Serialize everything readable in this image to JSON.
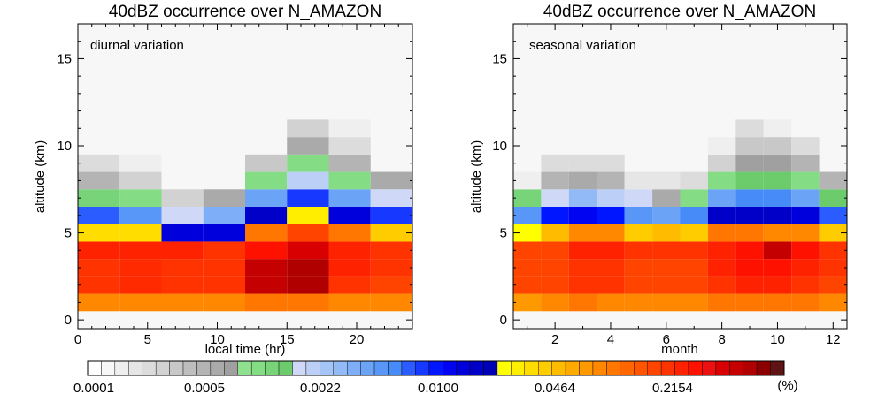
{
  "colorbar": {
    "tick_labels": [
      "0.0001",
      "0.0005",
      "0.0022",
      "0.0100",
      "0.0464",
      "0.2154"
    ],
    "unit": "(%)",
    "colors": [
      "#ffffff",
      "#f7f7f7",
      "#efefef",
      "#e6e6e6",
      "#dcdcdc",
      "#d2d2d2",
      "#c8c8c8",
      "#bebebe",
      "#b4b4b4",
      "#aaaaaa",
      "#a0a0a0",
      "#8fe08f",
      "#84dc84",
      "#78d478",
      "#6ccc6c",
      "#cfd9f7",
      "#bcd0f7",
      "#a6c5f7",
      "#92baf7",
      "#7eaef7",
      "#6ba3f7",
      "#5897f7",
      "#468bf7",
      "#2a5cff",
      "#1638ff",
      "#0016ff",
      "#0004f0",
      "#0000dc",
      "#0000c8",
      "#0000b4",
      "#ffff00",
      "#ffee00",
      "#ffdd00",
      "#ffcc00",
      "#ffbb00",
      "#ffaa00",
      "#ff9900",
      "#ff8800",
      "#ff7700",
      "#ff6600",
      "#ff5500",
      "#ff4400",
      "#ff3300",
      "#ff2200",
      "#ff1100",
      "#ec1010",
      "#d80000",
      "#c40000",
      "#b00000",
      "#8c0000",
      "#5e1414"
    ]
  },
  "chart_data": [
    {
      "type": "heatmap",
      "title": "40dBZ occurrence over N_AMAZON",
      "annotation": "diurnal variation",
      "xlabel": "local time (hr)",
      "ylabel": "altitude (km)",
      "xlim": [
        0,
        24
      ],
      "ylim": [
        -0.5,
        17
      ],
      "xticks": [
        0,
        5,
        10,
        15,
        20
      ],
      "yticks": [
        0,
        5,
        10,
        15
      ],
      "x_bin_edges": [
        0,
        3,
        6,
        9,
        12,
        15,
        18,
        21,
        24
      ],
      "y_bin_edges": [
        0.5,
        1.5,
        2.5,
        3.5,
        4.5,
        5.5,
        6.5,
        7.5,
        8.5,
        9.5,
        10.5,
        11.5,
        17
      ],
      "background": "#f7f7f7",
      "grid": false,
      "cells": [
        [
          "#ff8800",
          "#ff8800",
          "#ff8800",
          "#ff8800",
          "#ff7700",
          "#ff7700",
          "#ff8800",
          "#ff8800"
        ],
        [
          "#ff3300",
          "#ff2a00",
          "#ff3300",
          "#ff3300",
          "#c40000",
          "#b00000",
          "#ff3300",
          "#ff4400"
        ],
        [
          "#ff3300",
          "#ff2a00",
          "#ff3300",
          "#ff3300",
          "#c40000",
          "#b00000",
          "#ff2200",
          "#ff3300"
        ],
        [
          "#ff2200",
          "#ff2200",
          "#ff2200",
          "#ff3300",
          "#ff1100",
          "#d80000",
          "#ff2200",
          "#ff3300"
        ],
        [
          "#ffdd00",
          "#ffdd00",
          "#0000dc",
          "#0000dc",
          "#ff7700",
          "#ff4400",
          "#ff7700",
          "#ffcc00"
        ],
        [
          "#2a5cff",
          "#5897f7",
          "#cfd9f7",
          "#7eaef7",
          "#0000c8",
          "#ffee00",
          "#0000dc",
          "#1638ff"
        ],
        [
          "#78d478",
          "#84dc84",
          "#d2d2d2",
          "#aaaaaa",
          "#6ba3f7",
          "#1638ff",
          "#6ba3f7",
          "#cfd9f7"
        ],
        [
          "#b4b4b4",
          "#d2d2d2",
          null,
          null,
          "#84dc84",
          "#bcd0f7",
          "#84dc84",
          "#aaaaaa"
        ],
        [
          "#dcdcdc",
          "#efefef",
          null,
          null,
          "#c8c8c8",
          "#84dc84",
          "#b4b4b4",
          null
        ],
        [
          null,
          null,
          null,
          null,
          null,
          "#aaaaaa",
          "#dcdcdc",
          null
        ],
        [
          null,
          null,
          null,
          null,
          null,
          "#d2d2d2",
          "#efefef",
          null
        ],
        [
          null,
          null,
          null,
          null,
          null,
          null,
          null,
          null
        ]
      ]
    },
    {
      "type": "heatmap",
      "title": "40dBZ occurrence over N_AMAZON",
      "annotation": "seasonal variation",
      "xlabel": "month",
      "ylabel": "altitude (km)",
      "xlim": [
        0.5,
        12.5
      ],
      "ylim": [
        -0.5,
        17
      ],
      "xticks": [
        2,
        4,
        6,
        8,
        10,
        12
      ],
      "yticks": [
        0,
        5,
        10,
        15
      ],
      "x_bin_edges": [
        0.5,
        1.5,
        2.5,
        3.5,
        4.5,
        5.5,
        6.5,
        7.5,
        8.5,
        9.5,
        10.5,
        11.5,
        12.5
      ],
      "y_bin_edges": [
        0.5,
        1.5,
        2.5,
        3.5,
        4.5,
        5.5,
        6.5,
        7.5,
        8.5,
        9.5,
        10.5,
        11.5,
        17
      ],
      "background": "#f7f7f7",
      "grid": false,
      "cells": [
        [
          "#ff9900",
          "#ff8800",
          "#ff7700",
          "#ff8800",
          "#ff8800",
          "#ff8800",
          "#ff8800",
          "#ff7700",
          "#ff7700",
          "#ff7700",
          "#ff7700",
          "#ff8800"
        ],
        [
          "#ff4400",
          "#ff4400",
          "#ff3300",
          "#ff3300",
          "#ff4400",
          "#ff4400",
          "#ff4400",
          "#ff3300",
          "#ff2200",
          "#ff2200",
          "#ff3300",
          "#ff4400"
        ],
        [
          "#ff4400",
          "#ff4400",
          "#ff3300",
          "#ff3300",
          "#ff4400",
          "#ff4400",
          "#ff4400",
          "#ff2200",
          "#ff1100",
          "#ff1100",
          "#ff2200",
          "#ff3300"
        ],
        [
          "#ff4400",
          "#ff4400",
          "#ff2200",
          "#ff2200",
          "#ff3300",
          "#ff3300",
          "#ff3300",
          "#ff2200",
          "#ff1100",
          "#c40000",
          "#ff1100",
          "#ff3300"
        ],
        [
          "#ffff00",
          "#ffbb00",
          "#ff8800",
          "#ff8800",
          "#ffcc00",
          "#ffbb00",
          "#ffcc00",
          "#ff7700",
          "#ff7700",
          "#ff8800",
          "#ff8800",
          "#ffcc00"
        ],
        [
          "#5897f7",
          "#0016ff",
          "#0004f0",
          "#0016ff",
          "#5897f7",
          "#6ba3f7",
          "#468bf7",
          "#0000c8",
          "#0000c8",
          "#0000c8",
          "#0000dc",
          "#2a5cff"
        ],
        [
          "#78d478",
          "#cfd9f7",
          "#92baf7",
          "#bcd0f7",
          "#cfd9f7",
          "#aaaaaa",
          "#84dc84",
          "#6ba3f7",
          "#468bf7",
          "#468bf7",
          "#6ba3f7",
          "#6ccc6c"
        ],
        [
          "#efefef",
          "#b4b4b4",
          "#aaaaaa",
          "#b4b4b4",
          "#e6e6e6",
          "#e6e6e6",
          "#dcdcdc",
          "#84dc84",
          "#6ccc6c",
          "#6ccc6c",
          "#84dc84",
          "#b4b4b4"
        ],
        [
          null,
          "#dcdcdc",
          "#dcdcdc",
          "#dcdcdc",
          null,
          null,
          null,
          "#d2d2d2",
          "#a0a0a0",
          "#a0a0a0",
          "#b4b4b4",
          null
        ],
        [
          null,
          null,
          null,
          null,
          null,
          null,
          null,
          "#efefef",
          "#c8c8c8",
          "#c8c8c8",
          "#dcdcdc",
          null
        ],
        [
          null,
          null,
          null,
          null,
          null,
          null,
          null,
          null,
          "#dcdcdc",
          "#efefef",
          null,
          null
        ],
        [
          null,
          null,
          null,
          null,
          null,
          null,
          null,
          null,
          null,
          null,
          null,
          null
        ]
      ]
    }
  ]
}
